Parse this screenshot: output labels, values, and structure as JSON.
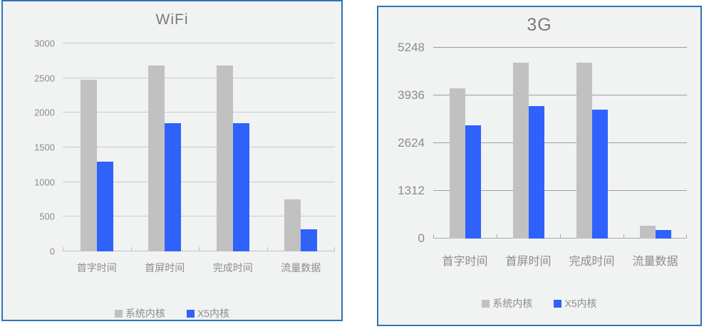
{
  "page": {
    "background": "#ffffff"
  },
  "chart_data": [
    {
      "type": "bar",
      "title": "WiFi",
      "categories": [
        "首字时间",
        "首屏时间",
        "完成时间",
        "流量数据"
      ],
      "series": [
        {
          "name": "系统内核",
          "color": "#C1C1C1",
          "values": [
            2480,
            2680,
            2680,
            750
          ]
        },
        {
          "name": "X5内核",
          "color": "#2F62FB",
          "values": [
            1290,
            1850,
            1850,
            320
          ]
        }
      ],
      "xlabel": "",
      "ylabel": "",
      "ylim": [
        0,
        3000
      ],
      "yticks": [
        3000,
        2500,
        2000,
        1500,
        1000,
        500,
        0
      ],
      "grid": true,
      "grid_color": "#C9C9C9",
      "baseline_color": "#C2C2C2",
      "legend_position": "bottom",
      "panel_border_color": "#2E75B6",
      "panel_background": "#F1F2F2",
      "title_color": "#7A7A7A",
      "label_color": "#8C8C8C"
    },
    {
      "type": "bar",
      "title": "3G",
      "categories": [
        "首字时间",
        "首屏时间",
        "完成时间",
        "流量数据"
      ],
      "series": [
        {
          "name": "系统内核",
          "color": "#C1C1C1",
          "values": [
            4130,
            4830,
            4830,
            350
          ]
        },
        {
          "name": "X5内核",
          "color": "#2F62FB",
          "values": [
            3110,
            3650,
            3550,
            240
          ]
        }
      ],
      "xlabel": "",
      "ylabel": "",
      "ylim": [
        0,
        5248
      ],
      "yticks": [
        5248,
        3936,
        2624,
        1312,
        0
      ],
      "grid": true,
      "grid_color": "#9E9E9E",
      "baseline_color": "#ABABAB",
      "legend_position": "bottom",
      "panel_border_color": "#2E75B6",
      "panel_background": "#F1F2F2",
      "title_color": "#7A7A7A",
      "label_color": "#8C8C8C"
    }
  ]
}
